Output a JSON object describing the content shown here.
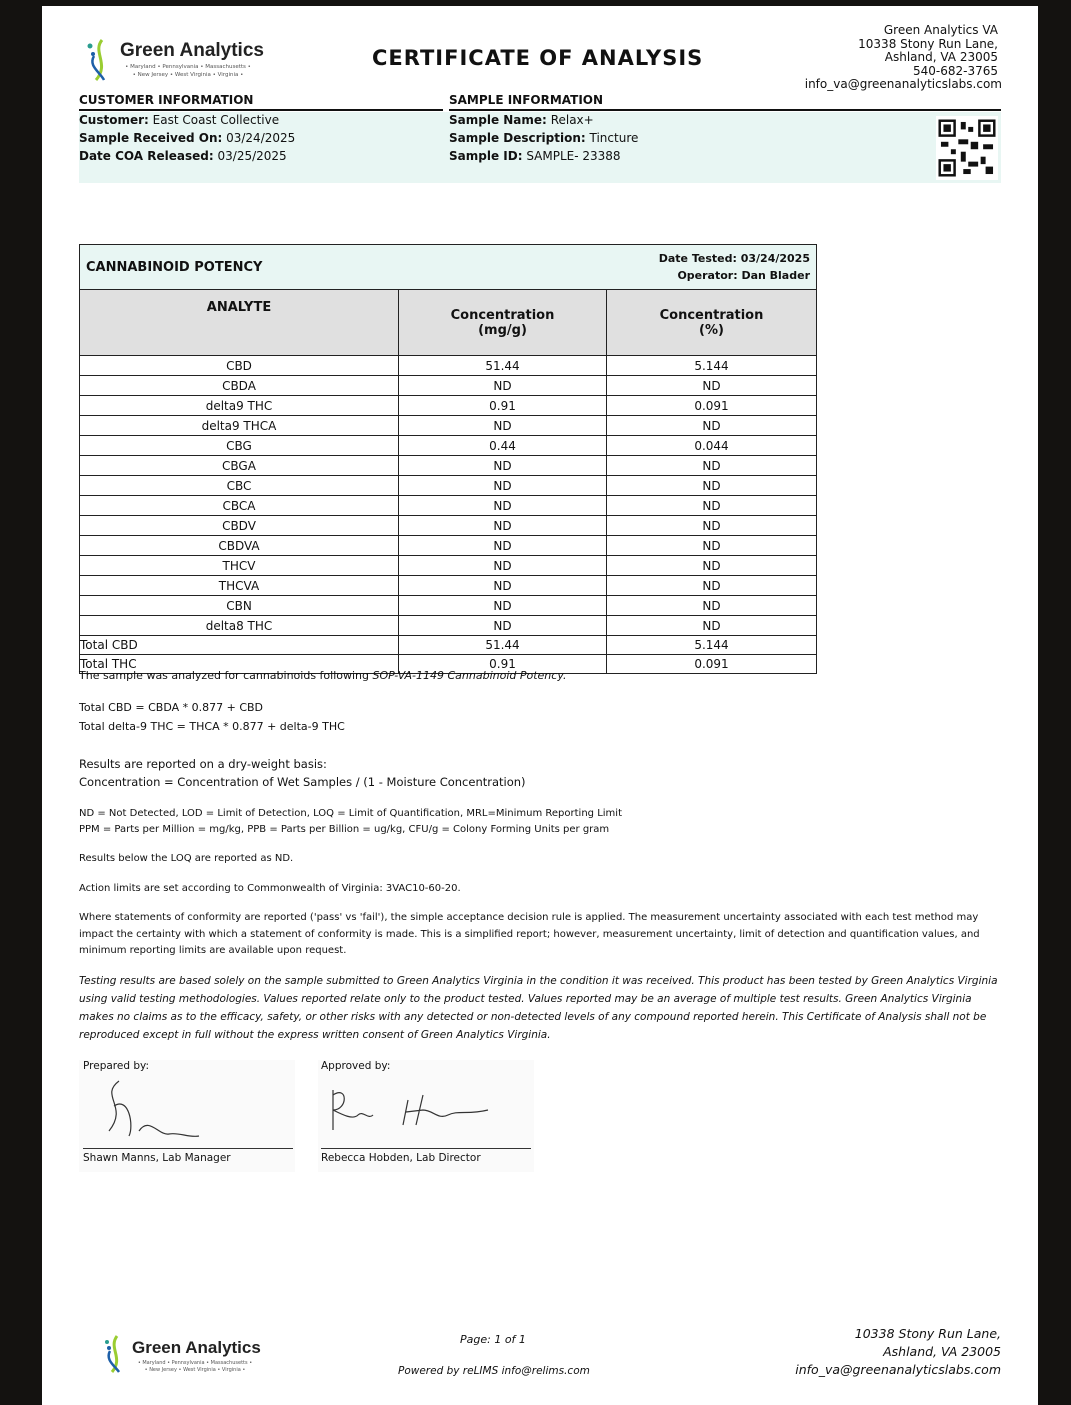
{
  "header": {
    "logo_name": "Green Analytics",
    "logo_states_1": "• Maryland • Pennsylvania • Massachusetts •",
    "logo_states_2": "• New Jersey • West Virginia • Virginia •",
    "title": "CERTIFICATE OF ANALYSIS",
    "address": [
      "Green Analytics VA",
      "10338 Stony Run Lane,",
      "Ashland, VA 23005",
      "540-682-3765",
      "info_va@greenanalyticslabs.com"
    ]
  },
  "customer": {
    "heading": "CUSTOMER INFORMATION",
    "customer_label": "Customer:",
    "customer": "East Coast Collective",
    "received_label": "Sample Received On:",
    "received": "03/24/2025",
    "released_label": "Date COA Released:",
    "released": "03/25/2025"
  },
  "sample": {
    "heading": "SAMPLE INFORMATION",
    "name_label": "Sample Name:",
    "name": "Relax+",
    "desc_label": "Sample Description:",
    "desc": "Tincture",
    "id_label": "Sample ID:",
    "id": "SAMPLE- 23388"
  },
  "potency": {
    "title": "CANNABINOID POTENCY",
    "date_tested": "Date Tested: 03/24/2025",
    "operator": "Operator: Dan Blader",
    "columns": [
      "ANALYTE",
      "Concentration\n(mg/g)",
      "Concentration\n(%)"
    ],
    "rows": [
      [
        "CBD",
        "51.44",
        "5.144"
      ],
      [
        "CBDA",
        "ND",
        "ND"
      ],
      [
        "delta9 THC",
        "0.91",
        "0.091"
      ],
      [
        "delta9 THCA",
        "ND",
        "ND"
      ],
      [
        "CBG",
        "0.44",
        "0.044"
      ],
      [
        "CBGA",
        "ND",
        "ND"
      ],
      [
        "CBC",
        "ND",
        "ND"
      ],
      [
        "CBCA",
        "ND",
        "ND"
      ],
      [
        "CBDV",
        "ND",
        "ND"
      ],
      [
        "CBDVA",
        "ND",
        "ND"
      ],
      [
        "THCV",
        "ND",
        "ND"
      ],
      [
        "THCVA",
        "ND",
        "ND"
      ],
      [
        "CBN",
        "ND",
        "ND"
      ],
      [
        "delta8 THC",
        "ND",
        "ND"
      ]
    ],
    "totals": [
      [
        "Total CBD",
        "51.44",
        "5.144"
      ],
      [
        "Total THC",
        "0.91",
        "0.091"
      ]
    ]
  },
  "notes": {
    "method": "The sample was analyzed for cannabinoids following",
    "method_ref": "SOP-VA-1149 Cannabinoid Potency.",
    "total_cbd": "Total CBD = CBDA * 0.877 + CBD",
    "total_thc": "Total delta-9 THC = THCA * 0.877 + delta-9 THC",
    "dry1": "Results are reported on a dry-weight basis:",
    "dry2": "Concentration = Concentration of Wet Samples / (1 - Moisture Concentration)",
    "abbr1": "ND = Not Detected, LOD = Limit of Detection, LOQ = Limit of Quantification, MRL=Minimum Reporting Limit",
    "abbr2": "PPM = Parts per Million = mg/kg, PPB = Parts per Billion = ug/kg, CFU/g = Colony Forming Units per gram",
    "loq": "Results below the LOQ are reported as ND.",
    "action": "Action limits are set according to Commonwealth of Virginia: 3VAC10-60-20.",
    "conformity": "Where statements of conformity are reported ('pass' vs 'fail'), the simple acceptance decision rule is applied. The measurement uncertainty associated with each test method may impact the certainty with which a statement of conformity is made. This is a simplified report; however, measurement uncertainty, limit of detection and quantification values, and minimum reporting limits are available upon request.",
    "disclaimer": "Testing results are based solely on the sample submitted to Green Analytics Virginia in the condition it was received. This product has been tested by Green Analytics Virginia using valid testing methodologies. Values reported relate only to the product tested. Values reported may be an average of multiple test results. Green Analytics Virginia makes no claims as to the efficacy, safety, or other risks with any detected or non-detected levels of any compound reported herein. This Certificate of Analysis shall not be reproduced except in full without the express written consent of Green Analytics Virginia."
  },
  "signatures": {
    "prepared_label": "Prepared by:",
    "prepared_name": "Shawn Manns, Lab Manager",
    "approved_label": "Approved by:",
    "approved_name": "Rebecca Hobden, Lab Director"
  },
  "footer": {
    "page": "Page: 1 of 1",
    "powered": "Powered by reLIMS info@relims.com",
    "address": [
      "10338 Stony Run Lane,",
      "Ashland, VA 23005",
      "info_va@greenanalyticslabs.com"
    ]
  }
}
